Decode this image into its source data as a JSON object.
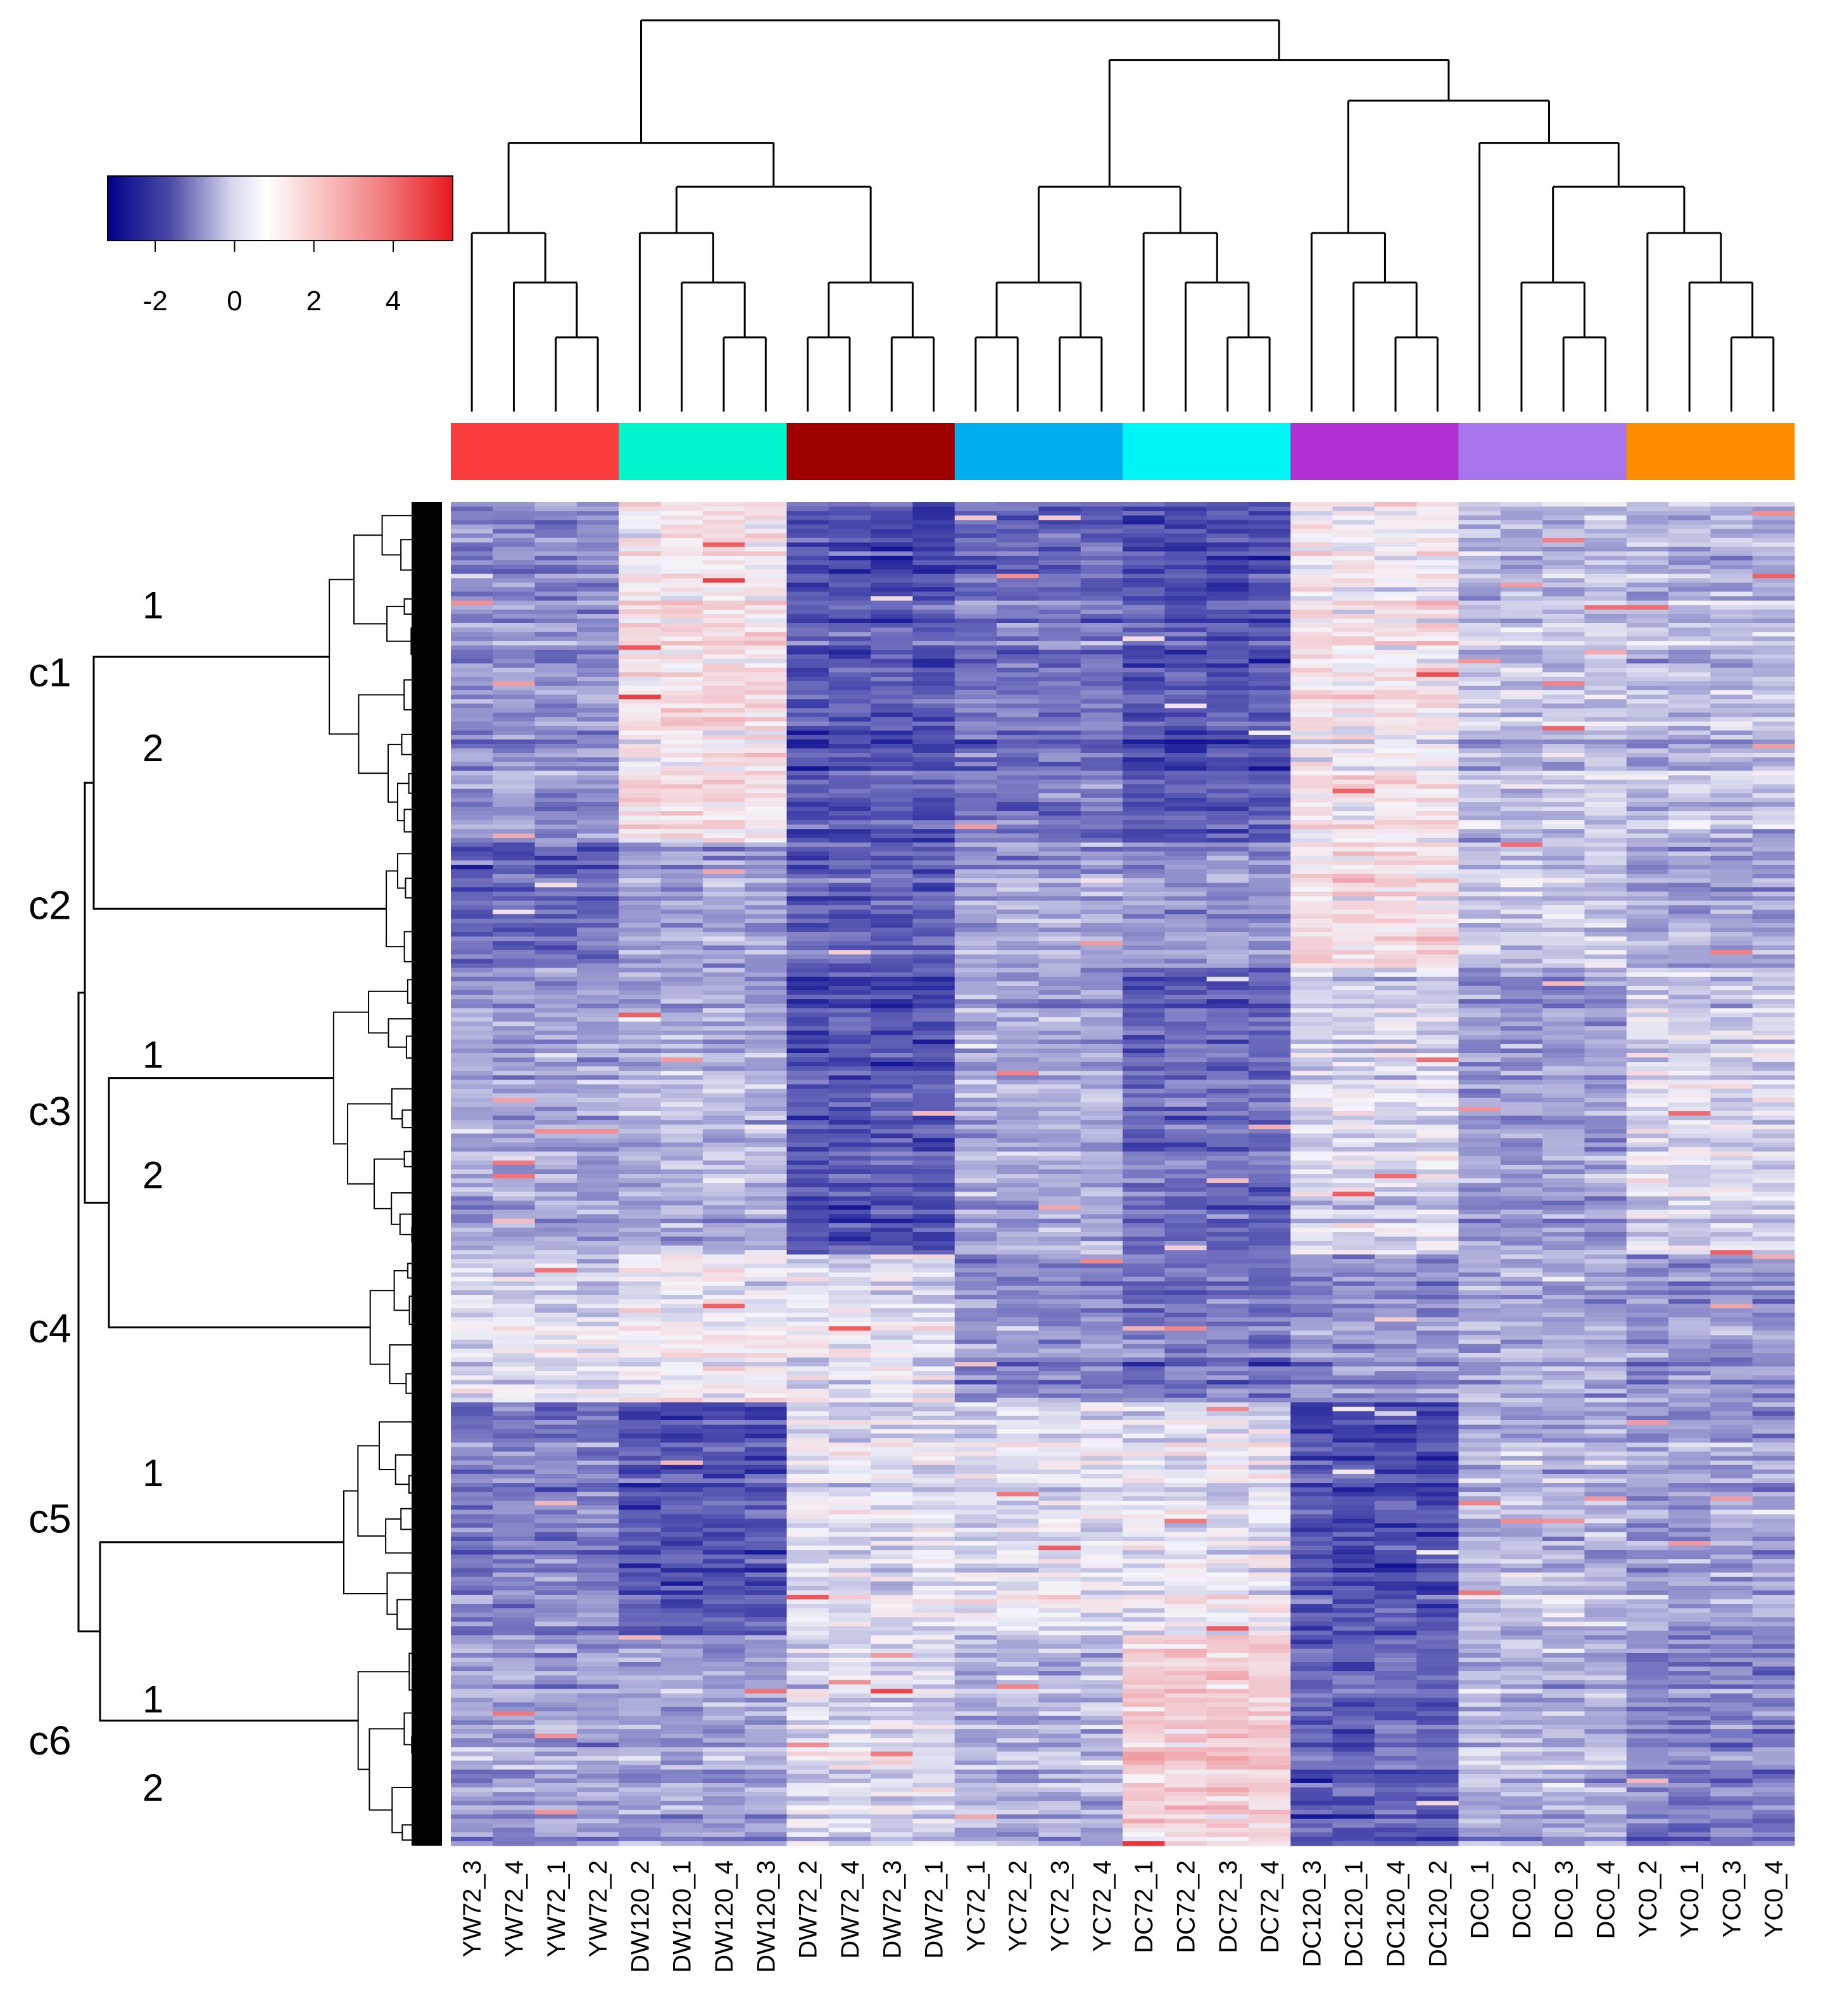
{
  "chart_data": {
    "type": "heatmap",
    "title": "",
    "columns": [
      "YW72_3",
      "YW72_4",
      "YW72_1",
      "YW72_2",
      "DW120_2",
      "DW120_1",
      "DW120_4",
      "DW120_3",
      "DW72_2",
      "DW72_4",
      "DW72_3",
      "DW72_1",
      "YC72_1",
      "YC72_2",
      "YC72_3",
      "YC72_4",
      "DC72_1",
      "DC72_2",
      "DC72_3",
      "DC72_4",
      "DC120_3",
      "DC120_1",
      "DC120_4",
      "DC120_2",
      "DC0_1",
      "DC0_2",
      "DC0_3",
      "DC0_4",
      "YC0_2",
      "YC0_1",
      "YC0_3",
      "YC0_4"
    ],
    "column_groups": [
      {
        "color": "#fa3c3c",
        "n": 4
      },
      {
        "color": "#00f5cd",
        "n": 4
      },
      {
        "color": "#a00000",
        "n": 4
      },
      {
        "color": "#00adef",
        "n": 4
      },
      {
        "color": "#00f5f5",
        "n": 4
      },
      {
        "color": "#b02fd0",
        "n": 4
      },
      {
        "color": "#a775ec",
        "n": 4
      },
      {
        "color": "#ff8c00",
        "n": 4
      }
    ],
    "color_scale": {
      "low": "#00008b",
      "mid": "#ffffff",
      "high": "#e8191e",
      "ticks": [
        "-2",
        "0",
        "2",
        "4"
      ],
      "tick_values": [
        -2,
        0,
        2,
        4
      ],
      "range": [
        -3.2,
        5.5
      ]
    },
    "row_clusters": [
      {
        "label": "c1",
        "subclusters": [
          "1",
          "2"
        ],
        "weight": 2.55
      },
      {
        "label": "c2",
        "subclusters": [],
        "weight": 0.95
      },
      {
        "label": "c3",
        "subclusters": [
          "1",
          "2"
        ],
        "weight": 2.15
      },
      {
        "label": "c4",
        "subclusters": [],
        "weight": 1.1
      },
      {
        "label": "c5",
        "subclusters": [
          "1"
        ],
        "weight": 1.75
      },
      {
        "label": "c6",
        "subclusters": [
          "1",
          "2"
        ],
        "weight": 1.55
      }
    ],
    "cluster_group_means": [
      [
        -1.2,
        0.3,
        -2.0,
        -1.6,
        -2.0,
        0.2,
        -0.6,
        -0.7
      ],
      [
        -1.7,
        -1.0,
        -1.8,
        -0.9,
        -1.1,
        0.4,
        -0.5,
        -1.0
      ],
      [
        -1.0,
        -0.8,
        -2.0,
        -0.9,
        -1.7,
        -0.3,
        -1.1,
        -0.3
      ],
      [
        -0.2,
        0.1,
        -0.1,
        -1.2,
        -1.5,
        -1.1,
        -0.8,
        -1.1
      ],
      [
        -1.4,
        -2.0,
        -0.2,
        -0.2,
        -0.1,
        -2.1,
        -0.7,
        -1.0
      ],
      [
        -1.0,
        -1.0,
        -0.3,
        -0.8,
        0.7,
        -1.8,
        -0.8,
        -1.4
      ]
    ],
    "column_dendrogram": "(((YW72_3,(YW72_4,(YW72_1,YW72_2))),((DW120_2,(DW120_1,(DW120_4,DW120_3))),((DW72_2,DW72_4),(DW72_3,DW72_1)))),((((YC72_1,YC72_2),(YC72_3,YC72_4)),(DC72_1,(DC72_2,(DC72_3,DC72_4)))),((DC120_3,(DC120_1,(DC120_4,DC120_2))),(DC0_1,((DC0_2,(DC0_3,DC0_4)),(YC0_2,(YC0_1,(YC0_3,YC0_4))))))))"
  }
}
